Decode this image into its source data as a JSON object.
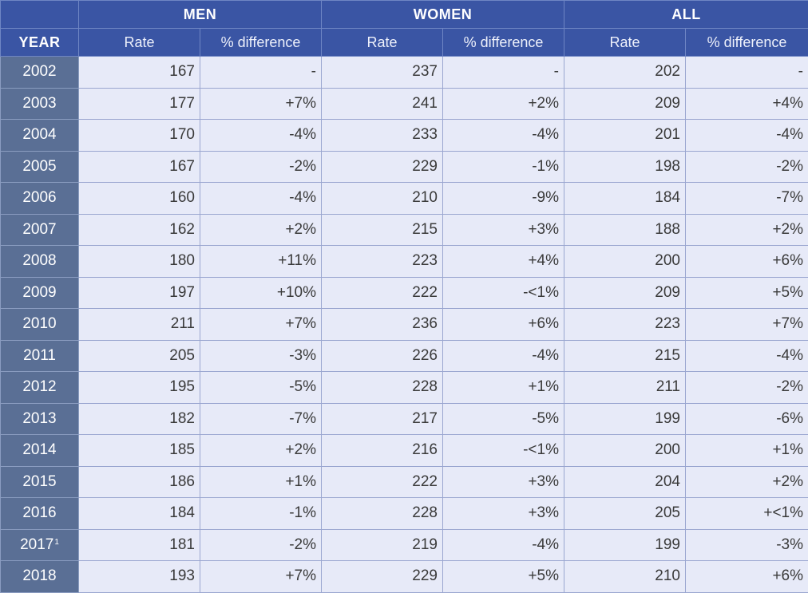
{
  "header": {
    "groups": [
      "MEN",
      "WOMEN",
      "ALL"
    ],
    "year_label": "YEAR",
    "rate_label": "Rate",
    "diff_label": "% difference"
  },
  "rows": [
    {
      "year": "2002",
      "note": "",
      "men_rate": "167",
      "men_diff": "-",
      "women_rate": "237",
      "women_diff": "-",
      "all_rate": "202",
      "all_diff": "-"
    },
    {
      "year": "2003",
      "note": "",
      "men_rate": "177",
      "men_diff": "+7%",
      "women_rate": "241",
      "women_diff": "+2%",
      "all_rate": "209",
      "all_diff": "+4%"
    },
    {
      "year": "2004",
      "note": "",
      "men_rate": "170",
      "men_diff": "-4%",
      "women_rate": "233",
      "women_diff": "-4%",
      "all_rate": "201",
      "all_diff": "-4%"
    },
    {
      "year": "2005",
      "note": "",
      "men_rate": "167",
      "men_diff": "-2%",
      "women_rate": "229",
      "women_diff": "-1%",
      "all_rate": "198",
      "all_diff": "-2%"
    },
    {
      "year": "2006",
      "note": "",
      "men_rate": "160",
      "men_diff": "-4%",
      "women_rate": "210",
      "women_diff": "-9%",
      "all_rate": "184",
      "all_diff": "-7%"
    },
    {
      "year": "2007",
      "note": "",
      "men_rate": "162",
      "men_diff": "+2%",
      "women_rate": "215",
      "women_diff": "+3%",
      "all_rate": "188",
      "all_diff": "+2%"
    },
    {
      "year": "2008",
      "note": "",
      "men_rate": "180",
      "men_diff": "+11%",
      "women_rate": "223",
      "women_diff": "+4%",
      "all_rate": "200",
      "all_diff": "+6%"
    },
    {
      "year": "2009",
      "note": "",
      "men_rate": "197",
      "men_diff": "+10%",
      "women_rate": "222",
      "women_diff": "-<1%",
      "all_rate": "209",
      "all_diff": "+5%"
    },
    {
      "year": "2010",
      "note": "",
      "men_rate": "211",
      "men_diff": "+7%",
      "women_rate": "236",
      "women_diff": "+6%",
      "all_rate": "223",
      "all_diff": "+7%"
    },
    {
      "year": "2011",
      "note": "",
      "men_rate": "205",
      "men_diff": "-3%",
      "women_rate": "226",
      "women_diff": "-4%",
      "all_rate": "215",
      "all_diff": "-4%"
    },
    {
      "year": "2012",
      "note": "",
      "men_rate": "195",
      "men_diff": "-5%",
      "women_rate": "228",
      "women_diff": "+1%",
      "all_rate": "211",
      "all_diff": "-2%"
    },
    {
      "year": "2013",
      "note": "",
      "men_rate": "182",
      "men_diff": "-7%",
      "women_rate": "217",
      "women_diff": "-5%",
      "all_rate": "199",
      "all_diff": "-6%"
    },
    {
      "year": "2014",
      "note": "",
      "men_rate": "185",
      "men_diff": "+2%",
      "women_rate": "216",
      "women_diff": "-<1%",
      "all_rate": "200",
      "all_diff": "+1%"
    },
    {
      "year": "2015",
      "note": "",
      "men_rate": "186",
      "men_diff": "+1%",
      "women_rate": "222",
      "women_diff": "+3%",
      "all_rate": "204",
      "all_diff": "+2%"
    },
    {
      "year": "2016",
      "note": "",
      "men_rate": "184",
      "men_diff": "-1%",
      "women_rate": "228",
      "women_diff": "+3%",
      "all_rate": "205",
      "all_diff": "+<1%"
    },
    {
      "year": "2017",
      "note": "1",
      "men_rate": "181",
      "men_diff": "-2%",
      "women_rate": "219",
      "women_diff": "-4%",
      "all_rate": "199",
      "all_diff": "-3%"
    },
    {
      "year": "2018",
      "note": "",
      "men_rate": "193",
      "men_diff": "+7%",
      "women_rate": "229",
      "women_diff": "+5%",
      "all_rate": "210",
      "all_diff": "+6%"
    }
  ]
}
